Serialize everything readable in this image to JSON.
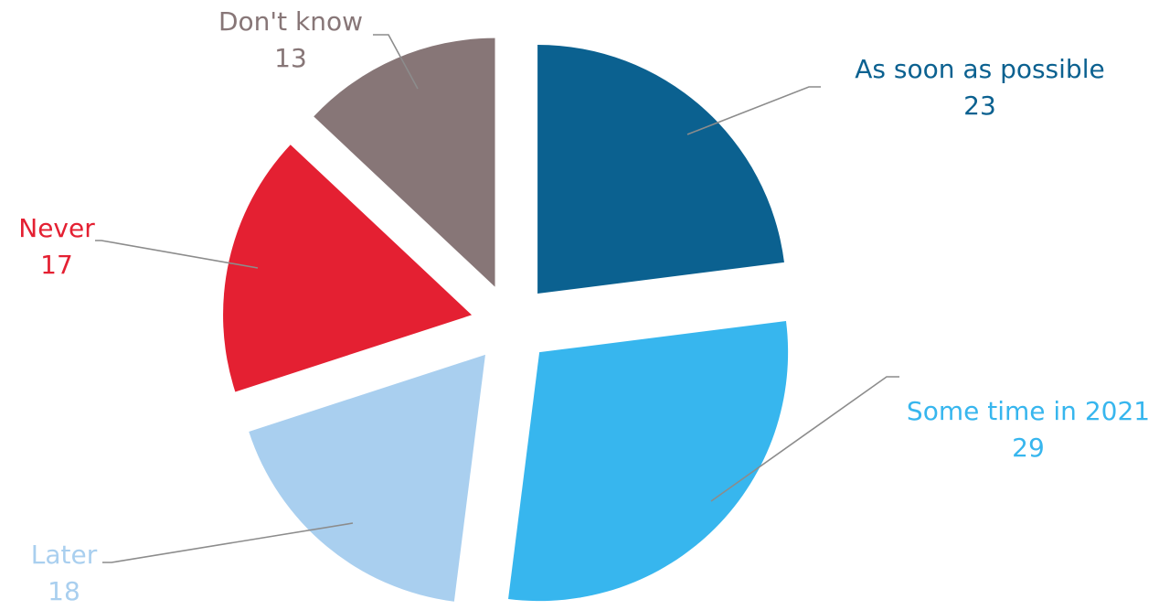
{
  "chart_data": {
    "type": "pie",
    "exploded": true,
    "title": "",
    "legend": "none",
    "slices": [
      {
        "label": "As soon as possible",
        "value": 23,
        "color": "#0b6190"
      },
      {
        "label": "Some time in 2021",
        "value": 29,
        "color": "#37b6ee"
      },
      {
        "label": "Later",
        "value": 18,
        "color": "#a9cfef"
      },
      {
        "label": "Never",
        "value": 17,
        "color": "#e42032"
      },
      {
        "label": "Don't know",
        "value": 13,
        "color": "#877677"
      }
    ]
  }
}
